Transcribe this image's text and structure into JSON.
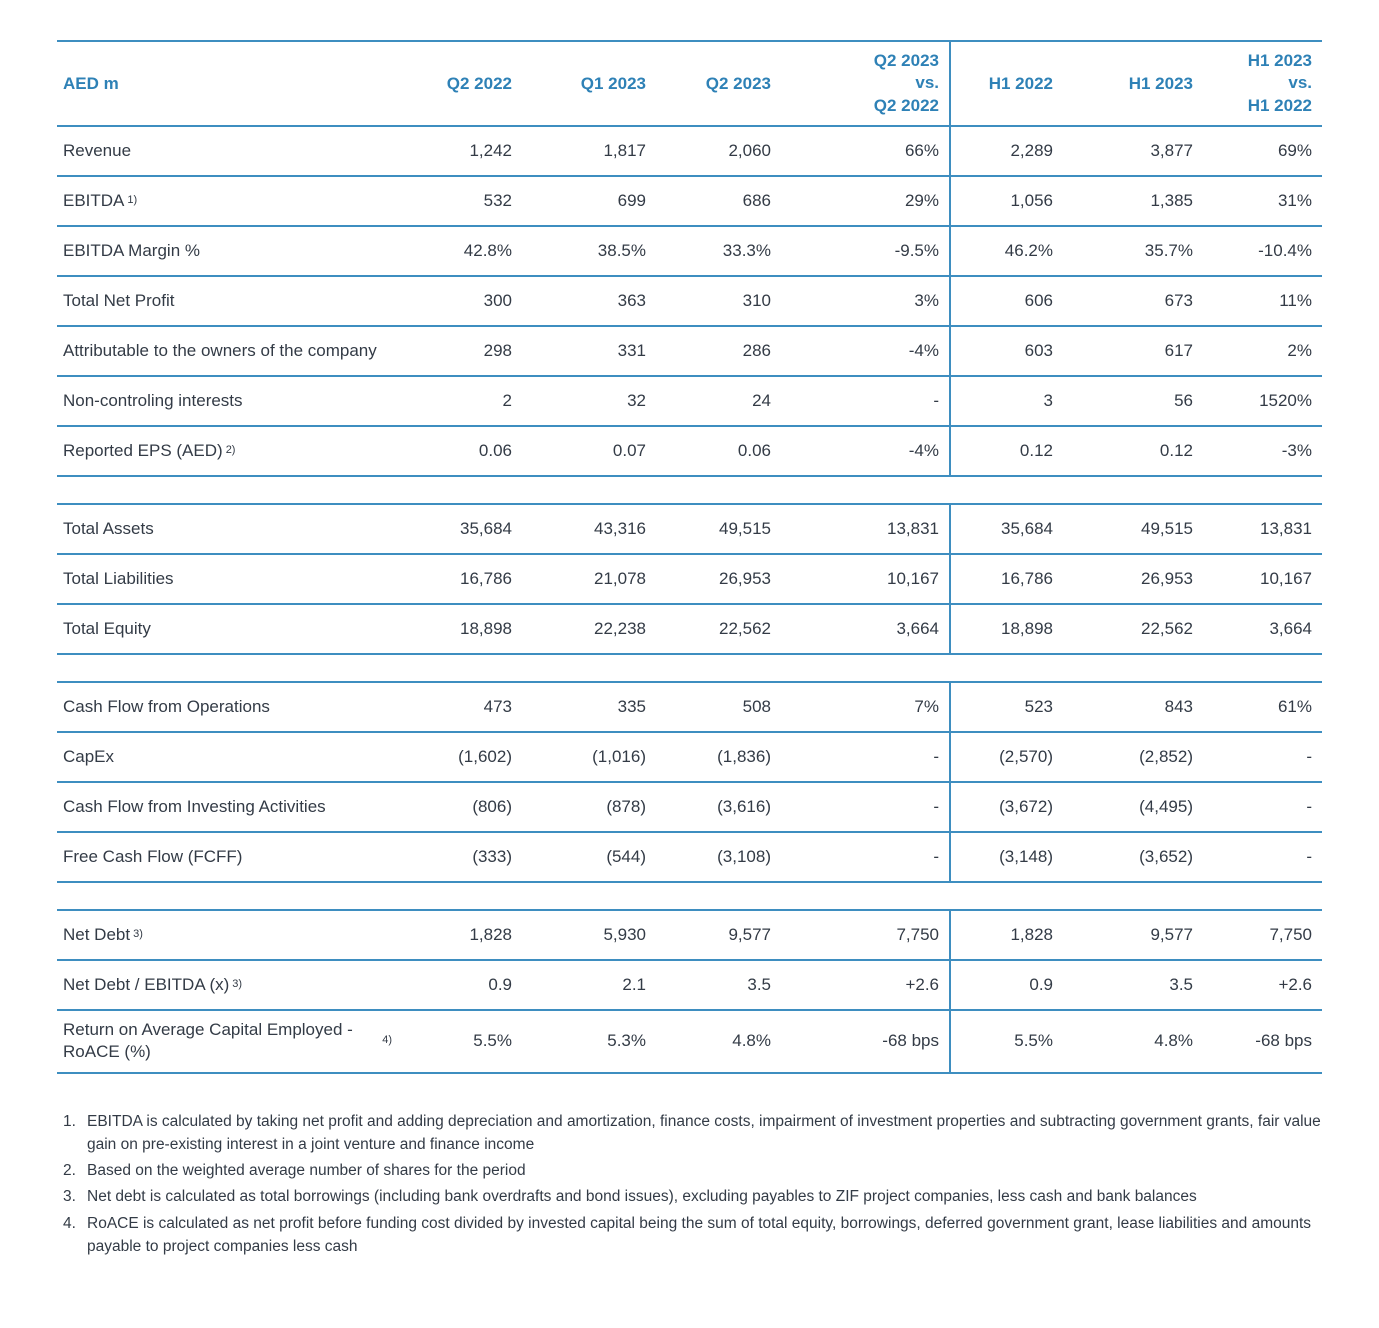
{
  "colors": {
    "accent_blue": "#2e81b6",
    "line_blue": "#3e8ec0",
    "text_dark": "#333b46"
  },
  "table": {
    "unit_label": "AED m",
    "columns": [
      "Q2 2022",
      "Q1 2023",
      "Q2 2023",
      "Q2 2023\nvs.\nQ2 2022",
      "H1 2022",
      "H1 2023",
      "H1 2023\nvs.\nH1 2022"
    ],
    "sections": [
      {
        "rows": [
          {
            "label": "Revenue",
            "sup": "",
            "values": [
              "1,242",
              "1,817",
              "2,060",
              "66%",
              "2,289",
              "3,877",
              "69%"
            ]
          },
          {
            "label": "EBITDA",
            "sup": "1)",
            "values": [
              "532",
              "699",
              "686",
              "29%",
              "1,056",
              "1,385",
              "31%"
            ]
          },
          {
            "label": "EBITDA Margin %",
            "sup": "",
            "values": [
              "42.8%",
              "38.5%",
              "33.3%",
              "-9.5%",
              "46.2%",
              "35.7%",
              "-10.4%"
            ]
          },
          {
            "label": "Total Net Profit",
            "sup": "",
            "values": [
              "300",
              "363",
              "310",
              "3%",
              "606",
              "673",
              "11%"
            ]
          },
          {
            "label": "Attributable to the owners of the company",
            "sup": "",
            "values": [
              "298",
              "331",
              "286",
              "-4%",
              "603",
              "617",
              "2%"
            ]
          },
          {
            "label": "Non-controling interests",
            "sup": "",
            "values": [
              "2",
              "32",
              "24",
              "-",
              "3",
              "56",
              "1520%"
            ]
          },
          {
            "label": "Reported EPS (AED)",
            "sup": "2)",
            "values": [
              "0.06",
              "0.07",
              "0.06",
              "-4%",
              "0.12",
              "0.12",
              "-3%"
            ]
          }
        ]
      },
      {
        "rows": [
          {
            "label": "Total Assets",
            "sup": "",
            "values": [
              "35,684",
              "43,316",
              "49,515",
              "13,831",
              "35,684",
              "49,515",
              "13,831"
            ]
          },
          {
            "label": "Total Liabilities",
            "sup": "",
            "values": [
              "16,786",
              "21,078",
              "26,953",
              "10,167",
              "16,786",
              "26,953",
              "10,167"
            ]
          },
          {
            "label": "Total Equity",
            "sup": "",
            "values": [
              "18,898",
              "22,238",
              "22,562",
              "3,664",
              "18,898",
              "22,562",
              "3,664"
            ]
          }
        ]
      },
      {
        "rows": [
          {
            "label": "Cash Flow from Operations",
            "sup": "",
            "values": [
              "473",
              "335",
              "508",
              "7%",
              "523",
              "843",
              "61%"
            ]
          },
          {
            "label": "CapEx",
            "sup": "",
            "values": [
              "(1,602)",
              "(1,016)",
              "(1,836)",
              "-",
              "(2,570)",
              "(2,852)",
              "-"
            ]
          },
          {
            "label": "Cash Flow from Investing Activities",
            "sup": "",
            "values": [
              "(806)",
              "(878)",
              "(3,616)",
              "-",
              "(3,672)",
              "(4,495)",
              "-"
            ]
          },
          {
            "label": "Free Cash Flow (FCFF)",
            "sup": "",
            "values": [
              "(333)",
              "(544)",
              "(3,108)",
              "-",
              "(3,148)",
              "(3,652)",
              "-"
            ]
          }
        ]
      },
      {
        "rows": [
          {
            "label": "Net Debt",
            "sup": "3)",
            "values": [
              "1,828",
              "5,930",
              "9,577",
              "7,750",
              "1,828",
              "9,577",
              "7,750"
            ]
          },
          {
            "label": "Net Debt / EBITDA (x)",
            "sup": "3)",
            "values": [
              "0.9",
              "2.1",
              "3.5",
              "+2.6",
              "0.9",
              "3.5",
              "+2.6"
            ]
          },
          {
            "label": "Return on Average Capital Employed - RoACE (%)",
            "sup": "4)",
            "values": [
              "5.5%",
              "5.3%",
              "4.8%",
              "-68 bps",
              "5.5%",
              "4.8%",
              "-68 bps"
            ]
          }
        ]
      }
    ]
  },
  "footnotes": [
    {
      "num": "1.",
      "text": "EBITDA is calculated by taking net profit and adding depreciation and amortization, finance costs, impairment of investment properties and subtracting government grants, fair value gain on pre-existing interest in a joint venture and finance income"
    },
    {
      "num": "2.",
      "text": "Based on the weighted average number of shares for the period"
    },
    {
      "num": "3.",
      "text": "Net debt is calculated as total borrowings (including bank overdrafts and bond issues), excluding payables to ZIF project companies, less cash and bank balances"
    },
    {
      "num": "4.",
      "text": "RoACE is calculated as net profit before funding cost divided by invested capital being the sum of total equity, borrowings, deferred government grant, lease liabilities and amounts payable to project companies less cash"
    }
  ]
}
